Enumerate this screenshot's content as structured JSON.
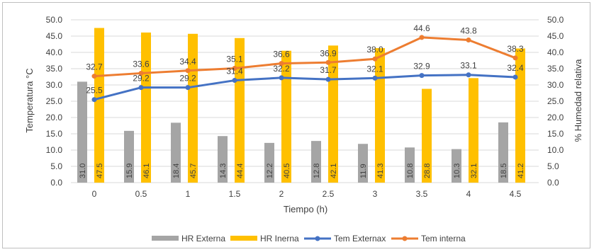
{
  "chart_data": {
    "type": "bar",
    "categories": [
      "0",
      "0.5",
      "1",
      "1.5",
      "2",
      "2.5",
      "3",
      "3.5",
      "4",
      "4.5"
    ],
    "xlabel": "Tiempo (h)",
    "ylabel_left": "Temperatura °C",
    "ylabel_right": "% Humedad relativa",
    "ylim_left": [
      0,
      50
    ],
    "ylim_right": [
      0,
      50
    ],
    "yticks_left": [
      "0.0",
      "5.0",
      "10.0",
      "15.0",
      "20.0",
      "25.0",
      "30.0",
      "35.0",
      "40.0",
      "45.0",
      "50.0"
    ],
    "yticks_right": [
      "0.0",
      "5.0",
      "10.0",
      "15.0",
      "20.0",
      "25.0",
      "30.0",
      "35.0",
      "40.0",
      "45.0",
      "50.0"
    ],
    "grid": true,
    "legend_position": "bottom",
    "series": [
      {
        "name": "HR Externa",
        "kind": "bar",
        "axis": "right",
        "color": "#a5a5a5",
        "values": [
          31.0,
          15.9,
          18.4,
          14.3,
          12.2,
          12.8,
          11.9,
          10.8,
          10.3,
          18.5
        ],
        "labels": [
          "31.0",
          "15.9",
          "18.4",
          "14.3",
          "12.2",
          "12.8",
          "11.9",
          "10.8",
          "10.3",
          "18.5"
        ]
      },
      {
        "name": "HR Inerna",
        "kind": "bar",
        "axis": "right",
        "color": "#ffc000",
        "values": [
          47.5,
          46.1,
          45.7,
          44.4,
          40.5,
          42.1,
          41.3,
          28.8,
          32.1,
          41.2
        ],
        "labels": [
          "47.5",
          "46.1",
          "45.7",
          "44.4",
          "40.5",
          "42.1",
          "41.3",
          "28.8",
          "32.1",
          "41.2"
        ]
      },
      {
        "name": "Tem Externax",
        "kind": "line",
        "axis": "left",
        "color": "#4472c4",
        "values": [
          25.5,
          29.2,
          29.2,
          31.4,
          32.2,
          31.7,
          32.1,
          32.9,
          33.1,
          32.4
        ],
        "labels": [
          "25.5",
          "29.2",
          "29.2",
          "31.4",
          "32.2",
          "31.7",
          "32.1",
          "32.9",
          "33.1",
          "32.4"
        ]
      },
      {
        "name": "Tem interna",
        "kind": "line",
        "axis": "left",
        "color": "#ed7d31",
        "values": [
          32.7,
          33.6,
          34.4,
          35.1,
          36.6,
          36.9,
          38.0,
          44.6,
          43.8,
          38.3
        ],
        "labels": [
          "32.7",
          "33.6",
          "34.4",
          "35.1",
          "36.6",
          "36.9",
          "38.0",
          "44.6",
          "43.8",
          "38.3"
        ]
      }
    ]
  }
}
